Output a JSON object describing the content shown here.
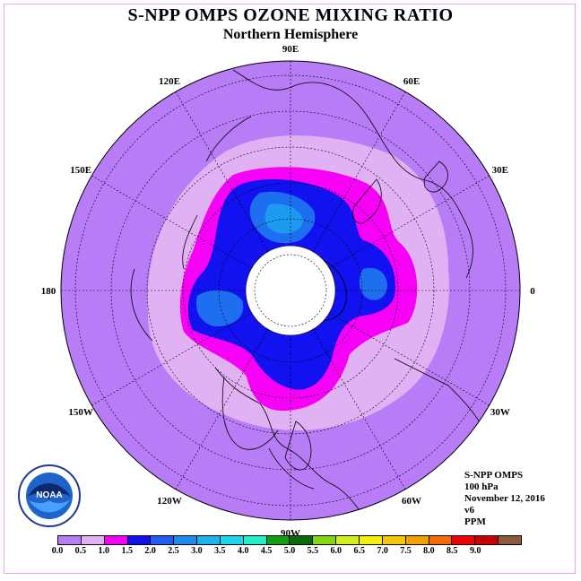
{
  "title": "S-NPP OMPS OZONE MIXING RATIO",
  "subtitle": "Northern Hemisphere",
  "longitude_labels": [
    {
      "text": "90E",
      "lon": 90
    },
    {
      "text": "60E",
      "lon": 60
    },
    {
      "text": "30E",
      "lon": 30
    },
    {
      "text": "0",
      "lon": 0
    },
    {
      "text": "30W",
      "lon": -30
    },
    {
      "text": "60W",
      "lon": -60
    },
    {
      "text": "90W",
      "lon": -90
    },
    {
      "text": "120W",
      "lon": -120
    },
    {
      "text": "150W",
      "lon": -150
    },
    {
      "text": "180",
      "lon": 180
    },
    {
      "text": "150E",
      "lon": 150
    },
    {
      "text": "120E",
      "lon": 120
    }
  ],
  "info": {
    "instrument": "S-NPP OMPS",
    "level": "100 hPa",
    "date": "November 12, 2016",
    "version": "v6",
    "units": "PPM"
  },
  "logo_text": "NOAA",
  "colorbar": {
    "colors": [
      "#b87cf6",
      "#e0b2f4",
      "#f600f6",
      "#1212f0",
      "#1e5ef0",
      "#1c8cf0",
      "#1cb4f0",
      "#1cd6f0",
      "#24f0c8",
      "#12a012",
      "#0a6a0a",
      "#86d616",
      "#d2f020",
      "#f6f000",
      "#f6c800",
      "#f6a000",
      "#f66c00",
      "#f00000",
      "#c80000",
      "#8c5a3c"
    ],
    "ticks": [
      "0.0",
      "0.5",
      "1.0",
      "1.5",
      "2.0",
      "2.5",
      "3.0",
      "3.5",
      "4.0",
      "4.5",
      "5.0",
      "5.5",
      "6.0",
      "6.5",
      "7.0",
      "7.5",
      "8.0",
      "8.5",
      "9.0"
    ]
  },
  "fill_colors": {
    "background": "#b87cf6",
    "level_0_5": "#e0b2f4",
    "level_1_0": "#f600f6",
    "level_1_5": "#1212f0",
    "level_2_0": "#1e6ef0",
    "level_2_5": "#1c9af0",
    "polar_night": "#ffffff"
  }
}
